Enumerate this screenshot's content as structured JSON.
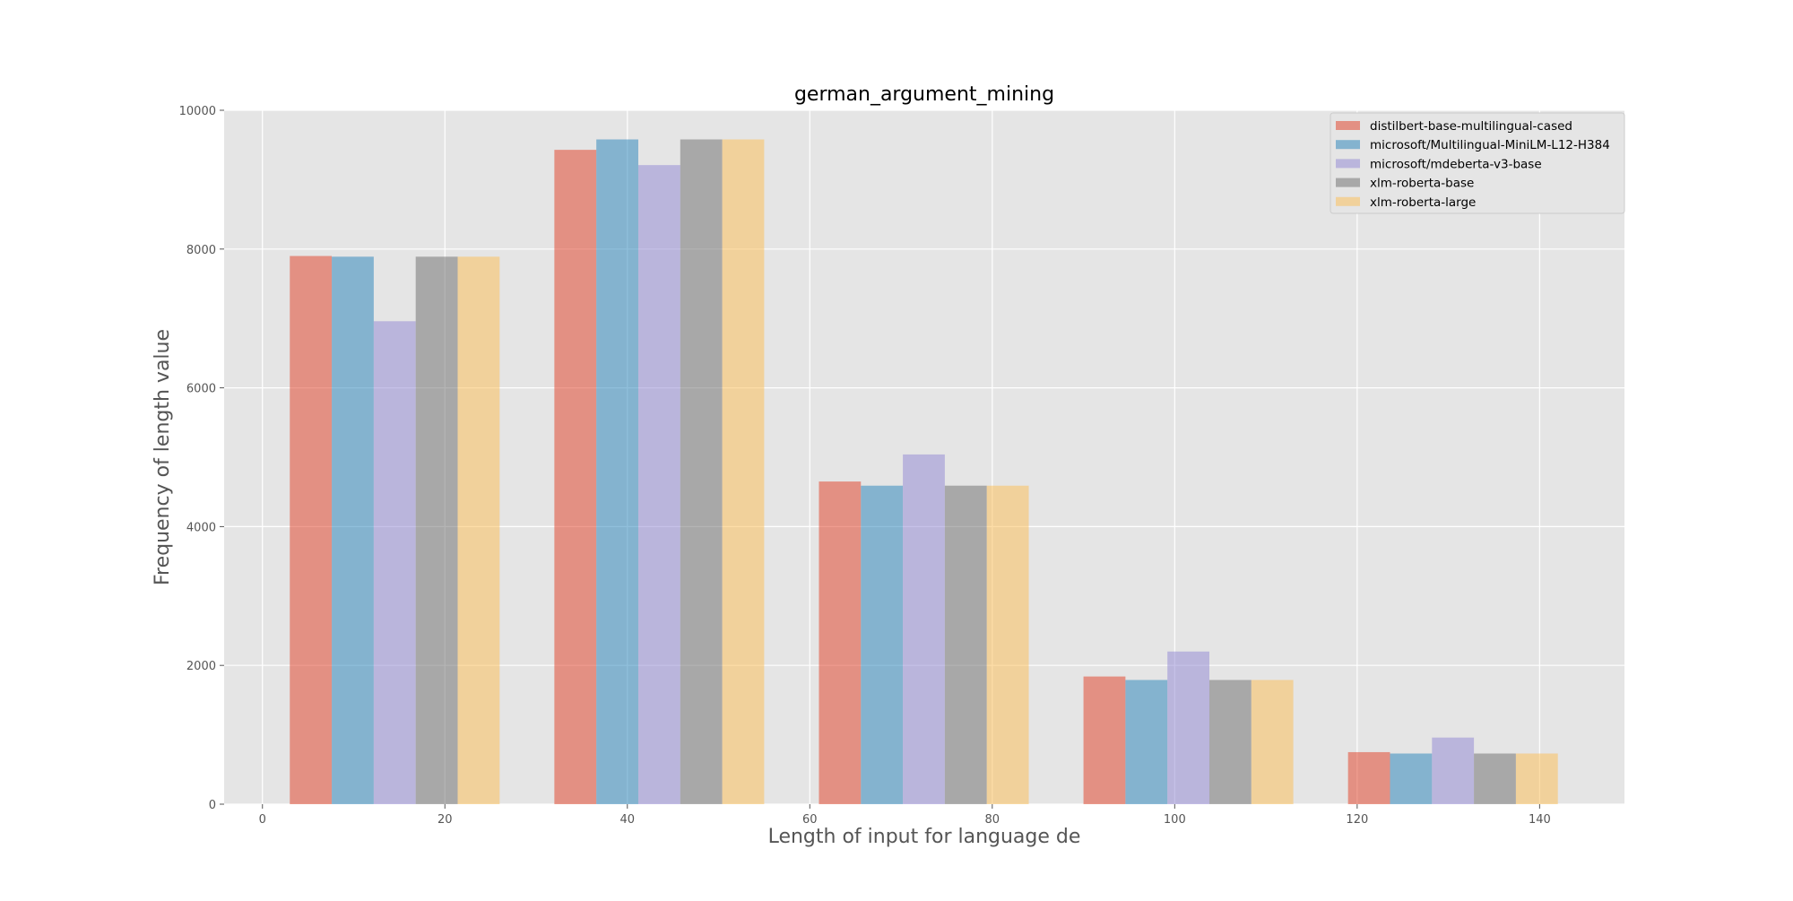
{
  "chart_data": {
    "type": "bar",
    "title": "german_argument_mining",
    "xlabel": "Length of input for language de",
    "ylabel": "Frequency of length value",
    "xlim": [
      -4.2,
      149.3
    ],
    "ylim": [
      0,
      10000
    ],
    "xticks": [
      0,
      20,
      40,
      60,
      80,
      100,
      120,
      140
    ],
    "yticks": [
      0,
      2000,
      4000,
      6000,
      8000,
      10000
    ],
    "grid": true,
    "legend_position": "top-right",
    "bar_width": 4.6,
    "series": [
      {
        "name": "distilbert-base-multilingual-cased",
        "color": "#E24A33",
        "x": [
          5.3,
          34.3,
          63.3,
          92.3,
          121.3
        ],
        "values": [
          7900,
          9430,
          4650,
          1840,
          750
        ]
      },
      {
        "name": "microsoft/Multilingual-MiniLM-L12-H384",
        "color": "#348ABD",
        "x": [
          9.9,
          38.9,
          67.9,
          96.9,
          125.9
        ],
        "values": [
          7890,
          9580,
          4590,
          1790,
          730
        ]
      },
      {
        "name": "microsoft/mdeberta-v3-base",
        "color": "#988ED5",
        "x": [
          14.5,
          43.5,
          72.5,
          101.5,
          130.5
        ],
        "values": [
          6960,
          9210,
          5040,
          2200,
          960
        ]
      },
      {
        "name": "xlm-roberta-base",
        "color": "#777777",
        "x": [
          19.1,
          48.1,
          77.1,
          106.1,
          135.1
        ],
        "values": [
          7890,
          9580,
          4590,
          1790,
          730
        ]
      },
      {
        "name": "xlm-roberta-large",
        "color": "#FBC15E",
        "x": [
          23.7,
          52.7,
          81.7,
          110.7,
          139.7
        ],
        "values": [
          7890,
          9580,
          4590,
          1790,
          730
        ]
      }
    ]
  }
}
